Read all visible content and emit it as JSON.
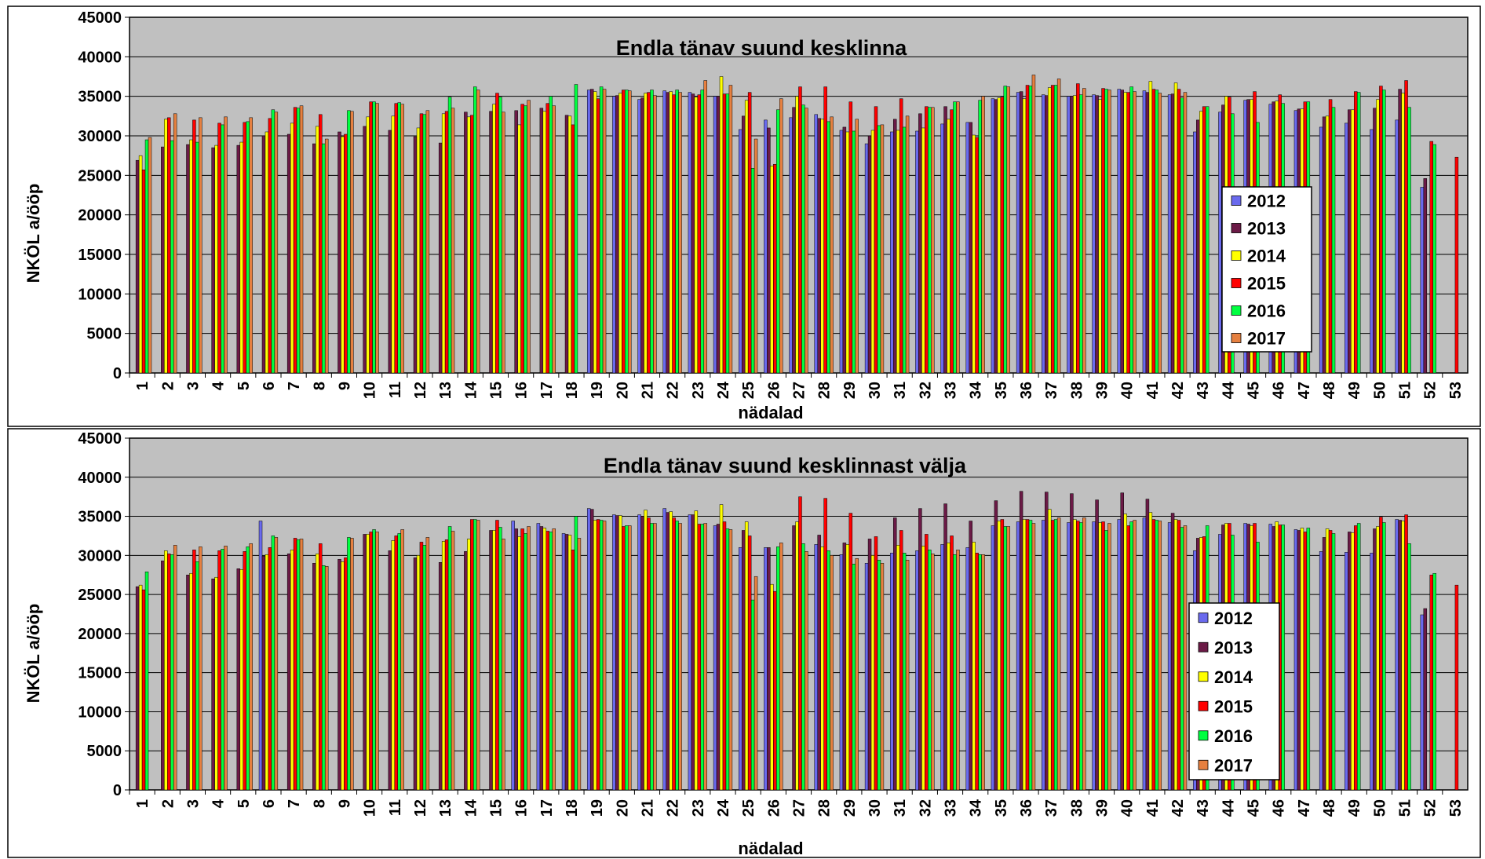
{
  "colors": {
    "2012": "#6a6aee",
    "2013": "#6b1a46",
    "2014": "#ffff00",
    "2015": "#ff0000",
    "2016": "#00ff40",
    "2017": "#e68040",
    "plot_background": "#c0c0c0"
  },
  "chart_data": [
    {
      "type": "bar",
      "title": "Endla tänav suund kesklinna",
      "xlabel": "nädalad",
      "ylabel": "NKÖL a/ööp",
      "ylim": [
        0,
        45000
      ],
      "yticks": [
        0,
        5000,
        10000,
        15000,
        20000,
        25000,
        30000,
        35000,
        40000,
        45000
      ],
      "grid": true,
      "legend_position": "right",
      "categories": [
        "1",
        "2",
        "3",
        "4",
        "5",
        "6",
        "7",
        "8",
        "9",
        "10",
        "11",
        "12",
        "13",
        "14",
        "15",
        "16",
        "17",
        "18",
        "19",
        "20",
        "21",
        "22",
        "23",
        "24",
        "25",
        "26",
        "27",
        "28",
        "29",
        "30",
        "31",
        "32",
        "33",
        "34",
        "35",
        "36",
        "37",
        "38",
        "39",
        "40",
        "41",
        "42",
        "43",
        "44",
        "45",
        "46",
        "47",
        "48",
        "49",
        "50",
        "51",
        "52",
        "53"
      ],
      "series": [
        {
          "name": "2012",
          "values": [
            null,
            null,
            null,
            null,
            null,
            null,
            null,
            null,
            null,
            null,
            null,
            null,
            null,
            null,
            null,
            null,
            null,
            null,
            35800,
            35000,
            34600,
            35700,
            35500,
            35000,
            30800,
            32000,
            32300,
            32700,
            30700,
            29000,
            30500,
            30600,
            31500,
            31700,
            34700,
            35500,
            35200,
            35000,
            35200,
            35900,
            35700,
            35200,
            30500,
            33000,
            34500,
            34000,
            33200,
            31100,
            31600,
            30800,
            32000,
            23500,
            null
          ]
        },
        {
          "name": "2013",
          "values": [
            26900,
            28600,
            28900,
            28500,
            28800,
            30000,
            30200,
            29000,
            30500,
            31200,
            30700,
            29900,
            29100,
            33000,
            33100,
            33200,
            33500,
            32600,
            35900,
            35100,
            34800,
            35500,
            35300,
            35000,
            32500,
            31000,
            33600,
            32200,
            31100,
            30000,
            32100,
            32800,
            33700,
            31700,
            34600,
            35600,
            35100,
            35000,
            35100,
            35800,
            35500,
            35300,
            32000,
            33900,
            34600,
            34300,
            33400,
            32400,
            33300,
            33500,
            35900,
            24600,
            null
          ]
        },
        {
          "name": "2014",
          "values": [
            27500,
            32100,
            29500,
            28800,
            29200,
            30500,
            31600,
            31200,
            29900,
            32400,
            32500,
            31000,
            32800,
            32400,
            34000,
            31400,
            33100,
            32500,
            35600,
            35400,
            35400,
            35600,
            34900,
            37500,
            34500,
            26200,
            35000,
            32100,
            30500,
            30700,
            30700,
            31000,
            32100,
            30100,
            34800,
            34700,
            36100,
            35100,
            34600,
            35500,
            36900,
            36700,
            33100,
            35000,
            34600,
            34400,
            33400,
            32500,
            33300,
            34600,
            35400,
            null,
            null
          ]
        },
        {
          "name": "2015",
          "values": [
            25700,
            32300,
            32000,
            31600,
            31700,
            32200,
            33600,
            32700,
            30200,
            34300,
            34100,
            32800,
            33100,
            32600,
            35400,
            34000,
            34100,
            31400,
            34700,
            35800,
            35500,
            35200,
            35200,
            35300,
            35500,
            26400,
            36200,
            36200,
            34300,
            33700,
            34700,
            33700,
            33300,
            29800,
            34900,
            36400,
            36400,
            36600,
            36000,
            35500,
            35900,
            35900,
            33700,
            34900,
            35600,
            35200,
            34300,
            34600,
            35600,
            36300,
            37000,
            29300,
            27300
          ]
        },
        {
          "name": "2016",
          "values": [
            29500,
            29400,
            29200,
            31400,
            31800,
            33300,
            33500,
            29000,
            33200,
            34300,
            34200,
            32700,
            34900,
            36200,
            34900,
            33800,
            35000,
            36500,
            36200,
            35800,
            35800,
            35800,
            35800,
            35300,
            25900,
            33300,
            33900,
            31800,
            30600,
            31300,
            31100,
            33600,
            34300,
            34500,
            36300,
            36300,
            36400,
            35200,
            35900,
            36200,
            35800,
            34800,
            33700,
            32800,
            31700,
            34100,
            34300,
            33600,
            35500,
            35800,
            33600,
            28900,
            null
          ]
        },
        {
          "name": "2017",
          "values": [
            29800,
            32800,
            32300,
            32400,
            32300,
            33000,
            33800,
            29600,
            33100,
            34100,
            34000,
            33200,
            33500,
            35800,
            33000,
            34500,
            33800,
            null,
            35900,
            35700,
            35100,
            35500,
            37000,
            36400,
            29600,
            34700,
            33500,
            32400,
            32100,
            31400,
            32500,
            33600,
            34300,
            35000,
            36200,
            37700,
            37200,
            36000,
            35800,
            35600,
            35400,
            35500,
            null,
            null,
            null,
            null,
            null,
            null,
            null,
            null,
            null,
            null,
            null
          ]
        }
      ]
    },
    {
      "type": "bar",
      "title": "Endla tänav suund kesklinnast välja",
      "xlabel": "nädalad",
      "ylabel": "NKÖL a/ööp",
      "ylim": [
        0,
        45000
      ],
      "yticks": [
        0,
        5000,
        10000,
        15000,
        20000,
        25000,
        30000,
        35000,
        40000,
        45000
      ],
      "grid": true,
      "legend_position": "right",
      "categories": [
        "1",
        "2",
        "3",
        "4",
        "5",
        "6",
        "7",
        "8",
        "9",
        "10",
        "11",
        "12",
        "13",
        "14",
        "15",
        "16",
        "17",
        "18",
        "19",
        "20",
        "21",
        "22",
        "23",
        "24",
        "25",
        "26",
        "27",
        "28",
        "29",
        "30",
        "31",
        "32",
        "33",
        "34",
        "35",
        "36",
        "37",
        "38",
        "39",
        "40",
        "41",
        "42",
        "43",
        "44",
        "45",
        "46",
        "47",
        "48",
        "49",
        "50",
        "51",
        "52",
        "53"
      ],
      "series": [
        {
          "name": "2012",
          "values": [
            null,
            null,
            null,
            null,
            null,
            34400,
            null,
            null,
            null,
            null,
            null,
            null,
            null,
            null,
            null,
            34400,
            34100,
            32800,
            36000,
            35200,
            35200,
            36000,
            35200,
            33800,
            31000,
            31000,
            null,
            31400,
            30100,
            29000,
            30300,
            30600,
            31400,
            31000,
            33800,
            34300,
            34500,
            34200,
            34300,
            34600,
            34800,
            34200,
            30600,
            32700,
            34100,
            34000,
            33300,
            30500,
            30400,
            30300,
            34600,
            22400,
            null
          ]
        },
        {
          "name": "2013",
          "values": [
            26000,
            29300,
            27500,
            27000,
            28300,
            29900,
            30200,
            29000,
            29500,
            32700,
            30600,
            29700,
            29100,
            30500,
            33200,
            33400,
            33700,
            32700,
            35900,
            35100,
            35000,
            35500,
            35200,
            34000,
            33200,
            31000,
            33800,
            32600,
            31600,
            32100,
            34800,
            36000,
            36600,
            34400,
            37000,
            38200,
            38100,
            37900,
            37100,
            38000,
            37200,
            35400,
            32200,
            33900,
            34000,
            33700,
            33200,
            32300,
            33000,
            33400,
            34500,
            23200,
            null
          ]
        },
        {
          "name": "2014",
          "values": [
            26200,
            30600,
            27700,
            27200,
            28200,
            30100,
            30700,
            30200,
            29200,
            32700,
            31900,
            30000,
            31800,
            32100,
            33200,
            32400,
            33500,
            32600,
            34500,
            35100,
            35800,
            35600,
            35700,
            36500,
            34300,
            26300,
            34300,
            31100,
            31400,
            30000,
            31300,
            31200,
            31600,
            31700,
            34400,
            34600,
            35900,
            34600,
            34200,
            35300,
            35500,
            34600,
            32300,
            34100,
            33800,
            34300,
            33500,
            33400,
            32900,
            33700,
            34400,
            null,
            null
          ]
        },
        {
          "name": "2015",
          "values": [
            25600,
            30200,
            30700,
            30600,
            30500,
            31000,
            32200,
            31500,
            29700,
            33000,
            32500,
            31700,
            32000,
            34600,
            34500,
            33400,
            33100,
            30700,
            34600,
            33700,
            34800,
            34800,
            34000,
            34300,
            32500,
            25400,
            37500,
            37300,
            35400,
            32400,
            33200,
            32700,
            32500,
            30300,
            34600,
            34600,
            34500,
            34400,
            34300,
            33800,
            34600,
            34500,
            32400,
            34100,
            34100,
            33900,
            33000,
            33200,
            33800,
            34900,
            35200,
            27500,
            26200
          ]
        },
        {
          "name": "2016",
          "values": [
            27900,
            30100,
            29200,
            30800,
            31100,
            32500,
            32000,
            28700,
            32300,
            33300,
            32800,
            31300,
            33700,
            34600,
            33600,
            32800,
            33000,
            35000,
            34500,
            33800,
            34100,
            34400,
            34000,
            33400,
            24300,
            31100,
            31500,
            30600,
            28900,
            29400,
            30300,
            30700,
            30100,
            30100,
            33700,
            34500,
            34600,
            34200,
            33200,
            34300,
            34500,
            33600,
            33800,
            32600,
            31700,
            33900,
            33500,
            32800,
            34100,
            34200,
            31500,
            27700,
            null
          ]
        },
        {
          "name": "2017",
          "values": [
            null,
            31300,
            31100,
            31200,
            31500,
            32300,
            32100,
            28600,
            32200,
            33000,
            33300,
            32300,
            33100,
            34500,
            32100,
            33700,
            33400,
            32200,
            34400,
            33800,
            34100,
            34100,
            34100,
            33300,
            27300,
            31600,
            30500,
            30000,
            29600,
            29000,
            29400,
            30200,
            30700,
            30100,
            33700,
            34100,
            34800,
            34800,
            34100,
            34500,
            34400,
            33800,
            null,
            null,
            null,
            null,
            null,
            null,
            null,
            null,
            null,
            null,
            null
          ]
        }
      ]
    }
  ]
}
